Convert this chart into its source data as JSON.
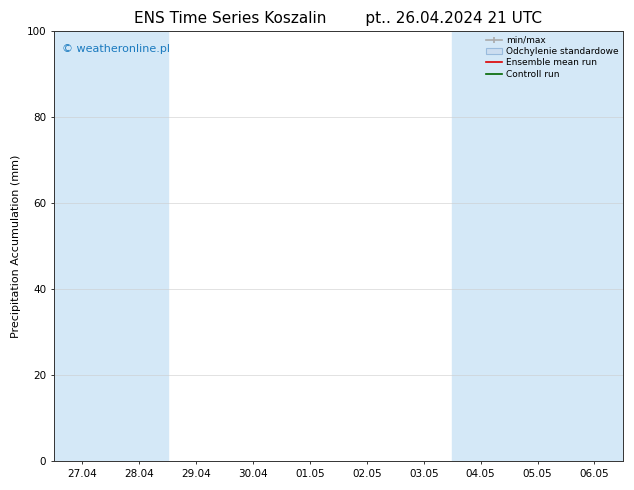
{
  "title": "ENS Time Series Koszalin",
  "subtitle": "pt.. 26.04.2024 21 UTC",
  "ylabel": "Precipitation Accumulation (mm)",
  "ylim": [
    0,
    100
  ],
  "yticks": [
    0,
    20,
    40,
    60,
    80,
    100
  ],
  "x_labels": [
    "27.04",
    "28.04",
    "29.04",
    "30.04",
    "01.05",
    "02.05",
    "03.05",
    "04.05",
    "05.05",
    "06.05"
  ],
  "watermark": "© weatheronline.pl",
  "watermark_color": "#1a7abf",
  "background_color": "#ffffff",
  "plot_bg_color": "#ffffff",
  "shaded_band_color": "#d4e8f7",
  "legend_labels": [
    "min/max",
    "Odchylenie standardowe",
    "Ensemble mean run",
    "Controll run"
  ],
  "title_fontsize": 11,
  "label_fontsize": 8,
  "tick_fontsize": 7.5,
  "watermark_fontsize": 8
}
